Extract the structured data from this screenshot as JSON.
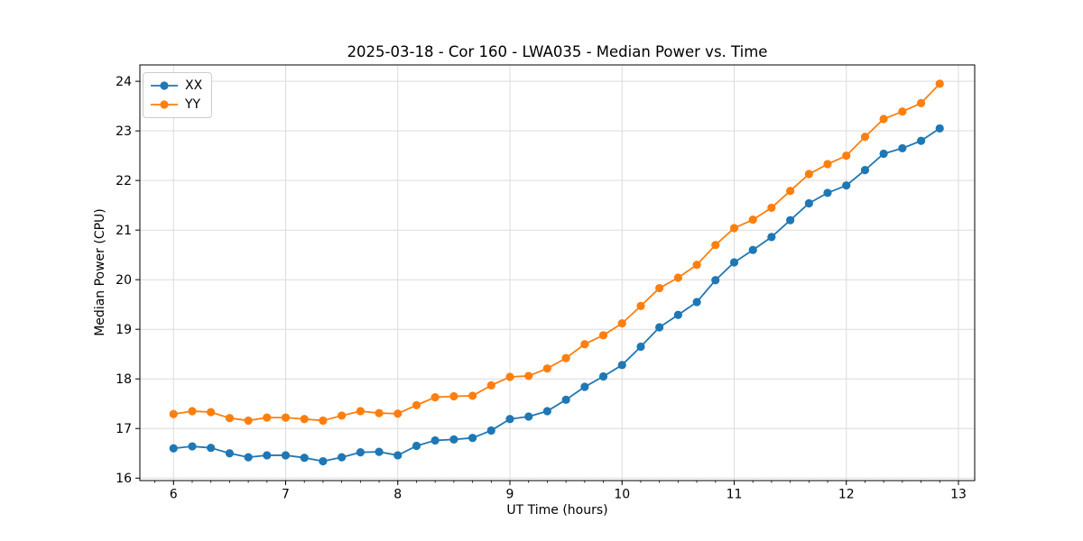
{
  "figure": {
    "background": "#ffffff",
    "frame_color": "#000000"
  },
  "chart_data": {
    "type": "line",
    "title": "2025-03-18 - Cor 160 - LWA035 - Median Power vs. Time",
    "xlabel": "UT Time (hours)",
    "ylabel": "Median Power (CPU)",
    "xlim": [
      5.7,
      13.145
    ],
    "ylim": [
      15.95,
      24.33
    ],
    "xticks": [
      6,
      7,
      8,
      9,
      10,
      11,
      12,
      13
    ],
    "yticks": [
      16,
      17,
      18,
      19,
      20,
      21,
      22,
      23,
      24
    ],
    "x_minor_step": 0.1666667,
    "grid": true,
    "grid_color": "#dcdcdc",
    "legend_position": "upper-left",
    "x": [
      6.0,
      6.167,
      6.333,
      6.5,
      6.667,
      6.833,
      7.0,
      7.167,
      7.333,
      7.5,
      7.667,
      7.833,
      8.0,
      8.167,
      8.333,
      8.5,
      8.667,
      8.833,
      9.0,
      9.167,
      9.333,
      9.5,
      9.667,
      9.833,
      10.0,
      10.167,
      10.333,
      10.5,
      10.667,
      10.833,
      11.0,
      11.167,
      11.333,
      11.5,
      11.667,
      11.833,
      12.0,
      12.167,
      12.333,
      12.5,
      12.667,
      12.833
    ],
    "series": [
      {
        "name": "XX",
        "color": "#1f77b4",
        "values": [
          16.6,
          16.64,
          16.61,
          16.5,
          16.42,
          16.46,
          16.46,
          16.41,
          16.34,
          16.42,
          16.52,
          16.53,
          16.46,
          16.65,
          16.76,
          16.78,
          16.81,
          16.96,
          17.19,
          17.24,
          17.35,
          17.58,
          17.84,
          18.05,
          18.28,
          18.65,
          19.04,
          19.29,
          19.55,
          19.99,
          20.35,
          20.6,
          20.86,
          21.2,
          21.54,
          21.75,
          21.9,
          22.21,
          22.54,
          22.65,
          22.8,
          23.05
        ]
      },
      {
        "name": "YY",
        "color": "#ff7f0e",
        "values": [
          17.29,
          17.35,
          17.33,
          17.21,
          17.16,
          17.22,
          17.22,
          17.19,
          17.16,
          17.26,
          17.35,
          17.31,
          17.3,
          17.47,
          17.63,
          17.65,
          17.66,
          17.87,
          18.04,
          18.06,
          18.21,
          18.42,
          18.7,
          18.88,
          19.12,
          19.47,
          19.83,
          20.04,
          20.3,
          20.7,
          21.04,
          21.21,
          21.45,
          21.79,
          22.13,
          22.33,
          22.5,
          22.88,
          23.24,
          23.39,
          23.56,
          23.95
        ]
      }
    ]
  }
}
